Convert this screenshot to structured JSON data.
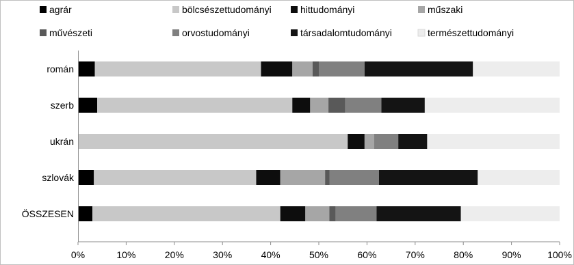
{
  "chart_data": {
    "type": "bar",
    "orientation": "horizontal",
    "stacked": "percent",
    "title": "",
    "xlabel": "",
    "ylabel": "",
    "xlim": [
      0,
      100
    ],
    "x_ticks": [
      "0%",
      "10%",
      "20%",
      "30%",
      "40%",
      "50%",
      "60%",
      "70%",
      "80%",
      "90%",
      "100%"
    ],
    "categories": [
      "román",
      "szerb",
      "ukrán",
      "szlovák",
      "ÖSSZESEN"
    ],
    "legend_position": "top",
    "grid": false,
    "series": [
      {
        "name": "agrár",
        "color": "#000000",
        "values": [
          3.5,
          4.0,
          0.0,
          3.3,
          3.0
        ]
      },
      {
        "name": "bölcsészettudományi",
        "color": "#c8c8c8",
        "values": [
          34.5,
          40.5,
          56.0,
          33.7,
          39.0
        ]
      },
      {
        "name": "hittudományi",
        "color": "#0d0d0d",
        "values": [
          6.5,
          3.7,
          3.5,
          5.0,
          5.2
        ]
      },
      {
        "name": "műszaki",
        "color": "#a6a6a6",
        "values": [
          4.2,
          3.8,
          2.0,
          9.3,
          5.0
        ]
      },
      {
        "name": "művészeti",
        "color": "#595959",
        "values": [
          1.3,
          3.5,
          0.0,
          0.9,
          1.3
        ]
      },
      {
        "name": "orvostudományi",
        "color": "#808080",
        "values": [
          9.5,
          7.5,
          5.0,
          10.3,
          8.5
        ]
      },
      {
        "name": "társadalomtudományi",
        "color": "#141414",
        "values": [
          22.5,
          9.0,
          6.0,
          20.5,
          17.5
        ]
      },
      {
        "name": "természettudományi",
        "color": "#ededed",
        "values": [
          18.0,
          28.0,
          27.5,
          17.0,
          20.5
        ]
      }
    ]
  }
}
